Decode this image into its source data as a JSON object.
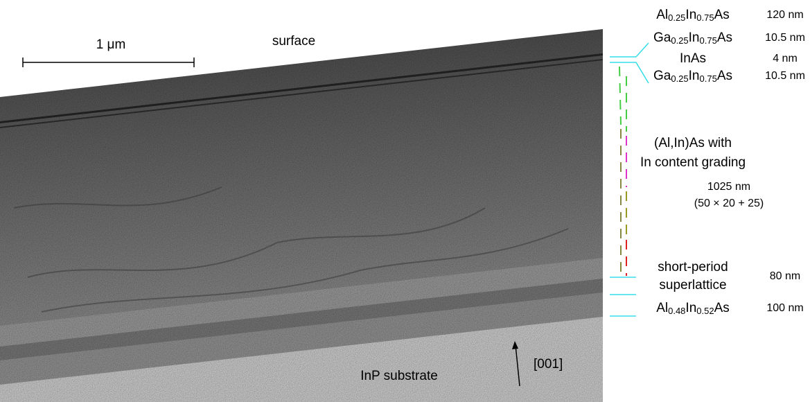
{
  "image_labels": {
    "scale_bar": "1 μm",
    "surface": "surface",
    "substrate": "InP substrate",
    "direction": "[001]"
  },
  "layers": [
    {
      "name": [
        [
          "Al",
          "0.25",
          "In",
          "0.75",
          "As"
        ]
      ],
      "thickness": [
        "120 nm"
      ]
    },
    {
      "name": [
        [
          "Ga",
          "0.25",
          "In",
          "0.75",
          "As"
        ]
      ],
      "thickness": [
        "10.5 nm"
      ]
    },
    {
      "name": [
        [
          "InAs"
        ]
      ],
      "thickness": [
        "4 nm"
      ]
    },
    {
      "name": [
        [
          "Ga",
          "0.25",
          "In",
          "0.75",
          "As"
        ]
      ],
      "thickness": [
        "10.5 nm"
      ]
    },
    {
      "name": [
        [
          "(Al,In)As with"
        ],
        [
          "In content grading"
        ]
      ],
      "thickness": [
        "1025 nm",
        "(50 × 20 + 25)"
      ]
    },
    {
      "name": [
        [
          "short-period"
        ],
        [
          "superlattice"
        ]
      ],
      "thickness": [
        "80 nm"
      ]
    },
    {
      "name": [
        [
          "Al",
          "0.48",
          "In",
          "0.52",
          "As"
        ]
      ],
      "thickness": [
        "100 nm"
      ]
    }
  ]
}
